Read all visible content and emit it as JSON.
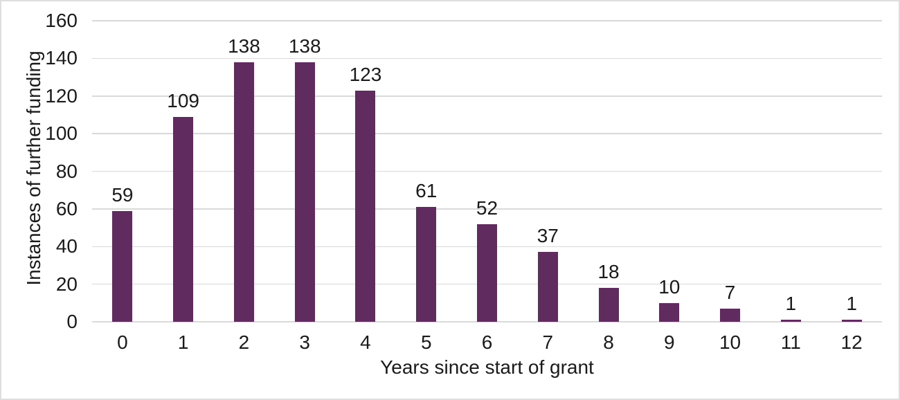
{
  "figure": {
    "background": "#FFFFFF",
    "border_color": "#DEDEDE"
  },
  "chart_data": {
    "type": "bar",
    "title": "",
    "categories": [
      "0",
      "1",
      "2",
      "3",
      "4",
      "5",
      "6",
      "7",
      "8",
      "9",
      "10",
      "11",
      "12"
    ],
    "values": [
      59,
      109,
      138,
      138,
      123,
      61,
      52,
      37,
      18,
      10,
      7,
      1,
      1
    ],
    "data_labels": [
      "59",
      "109",
      "138",
      "138",
      "123",
      "61",
      "52",
      "37",
      "18",
      "10",
      "7",
      "1",
      "1"
    ],
    "xlabel": "Years since start of grant",
    "ylabel": "Instances of further funding",
    "ylim": [
      0,
      160
    ],
    "yticks": [
      0,
      20,
      40,
      60,
      80,
      100,
      120,
      140,
      160
    ],
    "ytick_labels": [
      "0",
      "20",
      "40",
      "60",
      "80",
      "100",
      "120",
      "140",
      "160"
    ],
    "grid": "horizontal",
    "legend_position": "none",
    "bar_color": "#602B5F",
    "gridline_color": "#D9D9D9",
    "axis_line_color": "#D9D9D9",
    "text_color": "#1A1A1A"
  }
}
